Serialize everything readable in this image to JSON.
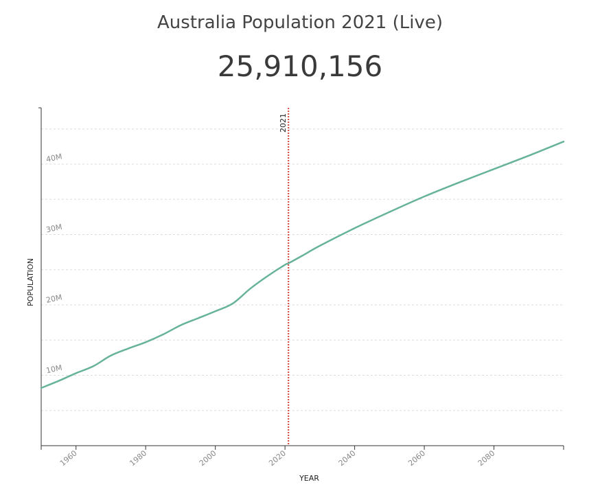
{
  "header": {
    "title": "Australia Population 2021 (Live)",
    "live_count": "25,910,156"
  },
  "colors": {
    "line": "#66b39a",
    "marker": "#d94040",
    "grid": "#dddddd",
    "axis": "#333333"
  },
  "chart_data": {
    "type": "line",
    "xlabel": "YEAR",
    "ylabel": "POPULATION",
    "xlim": [
      1950,
      2100
    ],
    "ylim": [
      0,
      48000000
    ],
    "x_ticks": [
      1960,
      1980,
      2000,
      2020,
      2040,
      2060,
      2080
    ],
    "x_tick_labels": [
      "1960",
      "1980",
      "2000",
      "2020",
      "2040",
      "2060",
      "2080"
    ],
    "y_ticks": [
      10000000,
      20000000,
      30000000,
      40000000
    ],
    "y_tick_labels": [
      "10M",
      "20M",
      "30M",
      "40M"
    ],
    "grid": true,
    "marker": {
      "x": 2021,
      "label": "2021"
    },
    "series": [
      {
        "x": [
          1950,
          1955,
          1960,
          1965,
          1970,
          1975,
          1980,
          1985,
          1990,
          1995,
          2000,
          2005,
          2010,
          2015,
          2020,
          2021,
          2025,
          2030,
          2040,
          2050,
          2060,
          2070,
          2080,
          2090,
          2100
        ],
        "values": [
          8200000,
          9200000,
          10300000,
          11300000,
          12800000,
          13800000,
          14700000,
          15800000,
          17100000,
          18100000,
          19100000,
          20200000,
          22300000,
          24100000,
          25700000,
          25910000,
          27000000,
          28400000,
          30900000,
          33200000,
          35400000,
          37400000,
          39300000,
          41200000,
          43200000
        ]
      }
    ]
  }
}
